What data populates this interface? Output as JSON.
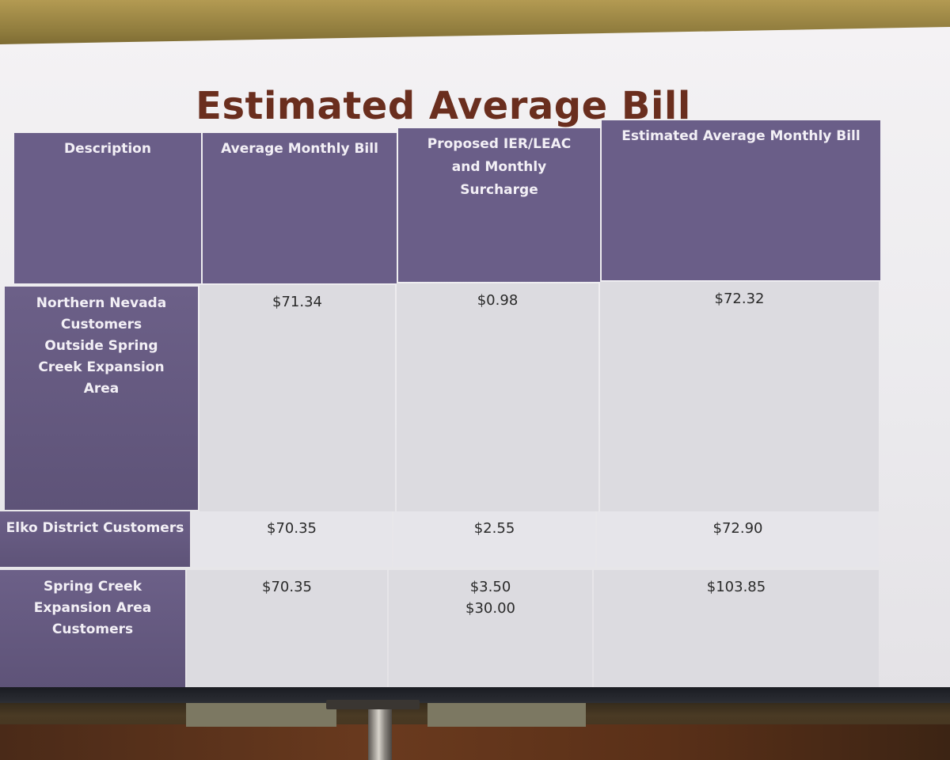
{
  "slide": {
    "title": "Estimated Average Bill"
  },
  "table": {
    "headers": {
      "description": "Description",
      "average_monthly_bill": "Average Monthly Bill",
      "proposed": "Proposed IER/LEAC and Monthly Surcharge",
      "estimated": "Estimated Average  Monthly Bill"
    },
    "rows": [
      {
        "description": "Northern Nevada Customers Outside Spring Creek Expansion Area",
        "average_monthly_bill": "$71.34",
        "proposed": "$0.98",
        "estimated": "$72.32"
      },
      {
        "description": "Elko District Customers",
        "average_monthly_bill": "$70.35",
        "proposed": "$2.55",
        "estimated": "$72.90"
      },
      {
        "description": "Spring Creek Expansion Area Customers",
        "average_monthly_bill": "$70.35",
        "proposed": [
          "$3.50",
          "$30.00"
        ],
        "estimated": "$103.85"
      }
    ]
  },
  "colors": {
    "title": "#6a2e1e",
    "header_bg": "#6a5e88",
    "cell_bg": "#dcdbe0"
  }
}
